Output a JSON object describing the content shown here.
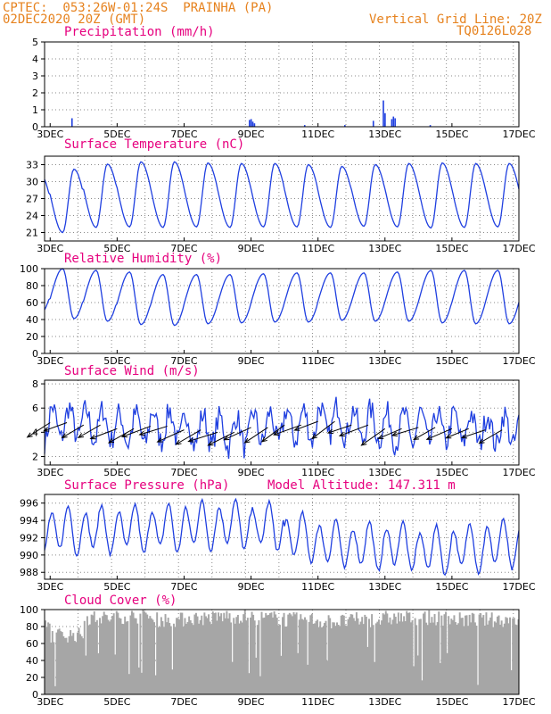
{
  "header": {
    "line1_left": "CPTEC:  053:26W-01:24S  PRAINHA (PA)",
    "line2_left": "02DEC2020 20Z (GMT)",
    "line2_right": "Vertical Grid Line: 20Z",
    "line3_right": "TQ0126L028"
  },
  "colors": {
    "title": "#e6007e",
    "header": "#e6821e",
    "series": "#1f3fe0",
    "cloud": "#a6a6a6",
    "arrow": "#000000"
  },
  "chart_data": [
    {
      "type": "bar",
      "title": "Precipitation (mm/h)",
      "ylim": [
        0,
        5
      ],
      "yticks": [
        "0",
        "1",
        "2",
        "3",
        "4",
        "5"
      ],
      "xticks": [
        "3DEC",
        "5DEC",
        "7DEC",
        "9DEC",
        "11DEC",
        "13DEC",
        "15DEC",
        "17DEC"
      ],
      "events": [
        {
          "day": 3.65,
          "value": 0.5
        },
        {
          "day": 8.95,
          "value": 0.4
        },
        {
          "day": 9.0,
          "value": 0.45
        },
        {
          "day": 9.05,
          "value": 0.3
        },
        {
          "day": 9.1,
          "value": 0.2
        },
        {
          "day": 10.6,
          "value": 0.1
        },
        {
          "day": 11.8,
          "value": 0.1
        },
        {
          "day": 12.65,
          "value": 0.35
        },
        {
          "day": 12.95,
          "value": 1.55
        },
        {
          "day": 13.0,
          "value": 0.8
        },
        {
          "day": 13.2,
          "value": 0.45
        },
        {
          "day": 13.25,
          "value": 0.6
        },
        {
          "day": 13.3,
          "value": 0.5
        },
        {
          "day": 14.35,
          "value": 0.1
        }
      ]
    },
    {
      "type": "line",
      "title": "Surface Temperature (nC)",
      "ylim": [
        19.5,
        34.5
      ],
      "yticks": [
        "21",
        "24",
        "27",
        "30",
        "33"
      ],
      "xticks": [
        "3DEC",
        "5DEC",
        "7DEC",
        "9DEC",
        "11DEC",
        "13DEC",
        "15DEC",
        "17DEC"
      ],
      "daily_max": [
        31.3,
        32.2,
        33.1,
        33.5,
        33.5,
        33.3,
        33.2,
        33.2,
        33.0,
        32.7,
        33.0,
        33.2,
        33.3,
        33.2,
        33.2
      ],
      "daily_min": [
        20.6,
        21.0,
        21.9,
        22.0,
        21.9,
        22.0,
        21.9,
        22.0,
        22.0,
        21.9,
        22.1,
        22.0,
        21.8,
        21.9,
        22.0
      ]
    },
    {
      "type": "line",
      "title": "Relative Humidity (%)",
      "ylim": [
        0,
        100
      ],
      "yticks": [
        "0",
        "20",
        "40",
        "60",
        "80",
        "100"
      ],
      "xticks": [
        "3DEC",
        "5DEC",
        "7DEC",
        "9DEC",
        "11DEC",
        "13DEC",
        "15DEC",
        "17DEC"
      ],
      "daily_max": [
        100,
        100,
        98,
        96,
        93,
        93,
        93,
        94,
        95,
        95,
        95,
        96,
        98,
        98,
        98
      ],
      "daily_min": [
        47,
        41,
        38,
        34,
        33,
        35,
        36,
        37,
        37,
        39,
        38,
        38,
        36,
        35,
        35
      ]
    },
    {
      "type": "line",
      "title": "Surface Wind (m/s)",
      "ylim": [
        1.3,
        8.3
      ],
      "yticks": [
        "2",
        "4",
        "6",
        "8"
      ],
      "xticks": [
        "3DEC",
        "5DEC",
        "7DEC",
        "9DEC",
        "11DEC",
        "13DEC",
        "15DEC",
        "17DEC"
      ],
      "daily_mean": [
        4.5,
        4.8,
        4.6,
        4.3,
        4.5,
        4.2,
        4.0,
        4.4,
        4.6,
        4.9,
        4.6,
        4.3,
        4.4,
        4.3,
        4.2
      ],
      "vectors_every_hours": 12
    },
    {
      "type": "line",
      "title": "Surface Pressure (hPa)",
      "annotation": "Model Altitude: 147.311 m",
      "ylim": [
        987.2,
        997.0
      ],
      "yticks": [
        "988",
        "990",
        "992",
        "994",
        "996"
      ],
      "xticks": [
        "3DEC",
        "5DEC",
        "7DEC",
        "9DEC",
        "11DEC",
        "13DEC",
        "15DEC",
        "17DEC"
      ],
      "daily_mean": [
        993.0,
        992.8,
        992.9,
        993.0,
        993.1,
        993.4,
        993.5,
        993.3,
        992.0,
        991.3,
        991.0,
        991.0,
        990.5,
        990.8,
        991.2
      ],
      "semidiurnal_amp": 2.4
    },
    {
      "type": "bar",
      "title": "Cloud Cover (%)",
      "ylim": [
        0,
        100
      ],
      "yticks": [
        "0",
        "20",
        "40",
        "60",
        "80",
        "100"
      ],
      "xticks": [
        "3DEC",
        "5DEC",
        "7DEC",
        "9DEC",
        "11DEC",
        "13DEC",
        "15DEC",
        "17DEC"
      ],
      "daily_mean": [
        80,
        70,
        90,
        92,
        88,
        90,
        92,
        90,
        88,
        86,
        88,
        90,
        90,
        88,
        88
      ]
    }
  ]
}
